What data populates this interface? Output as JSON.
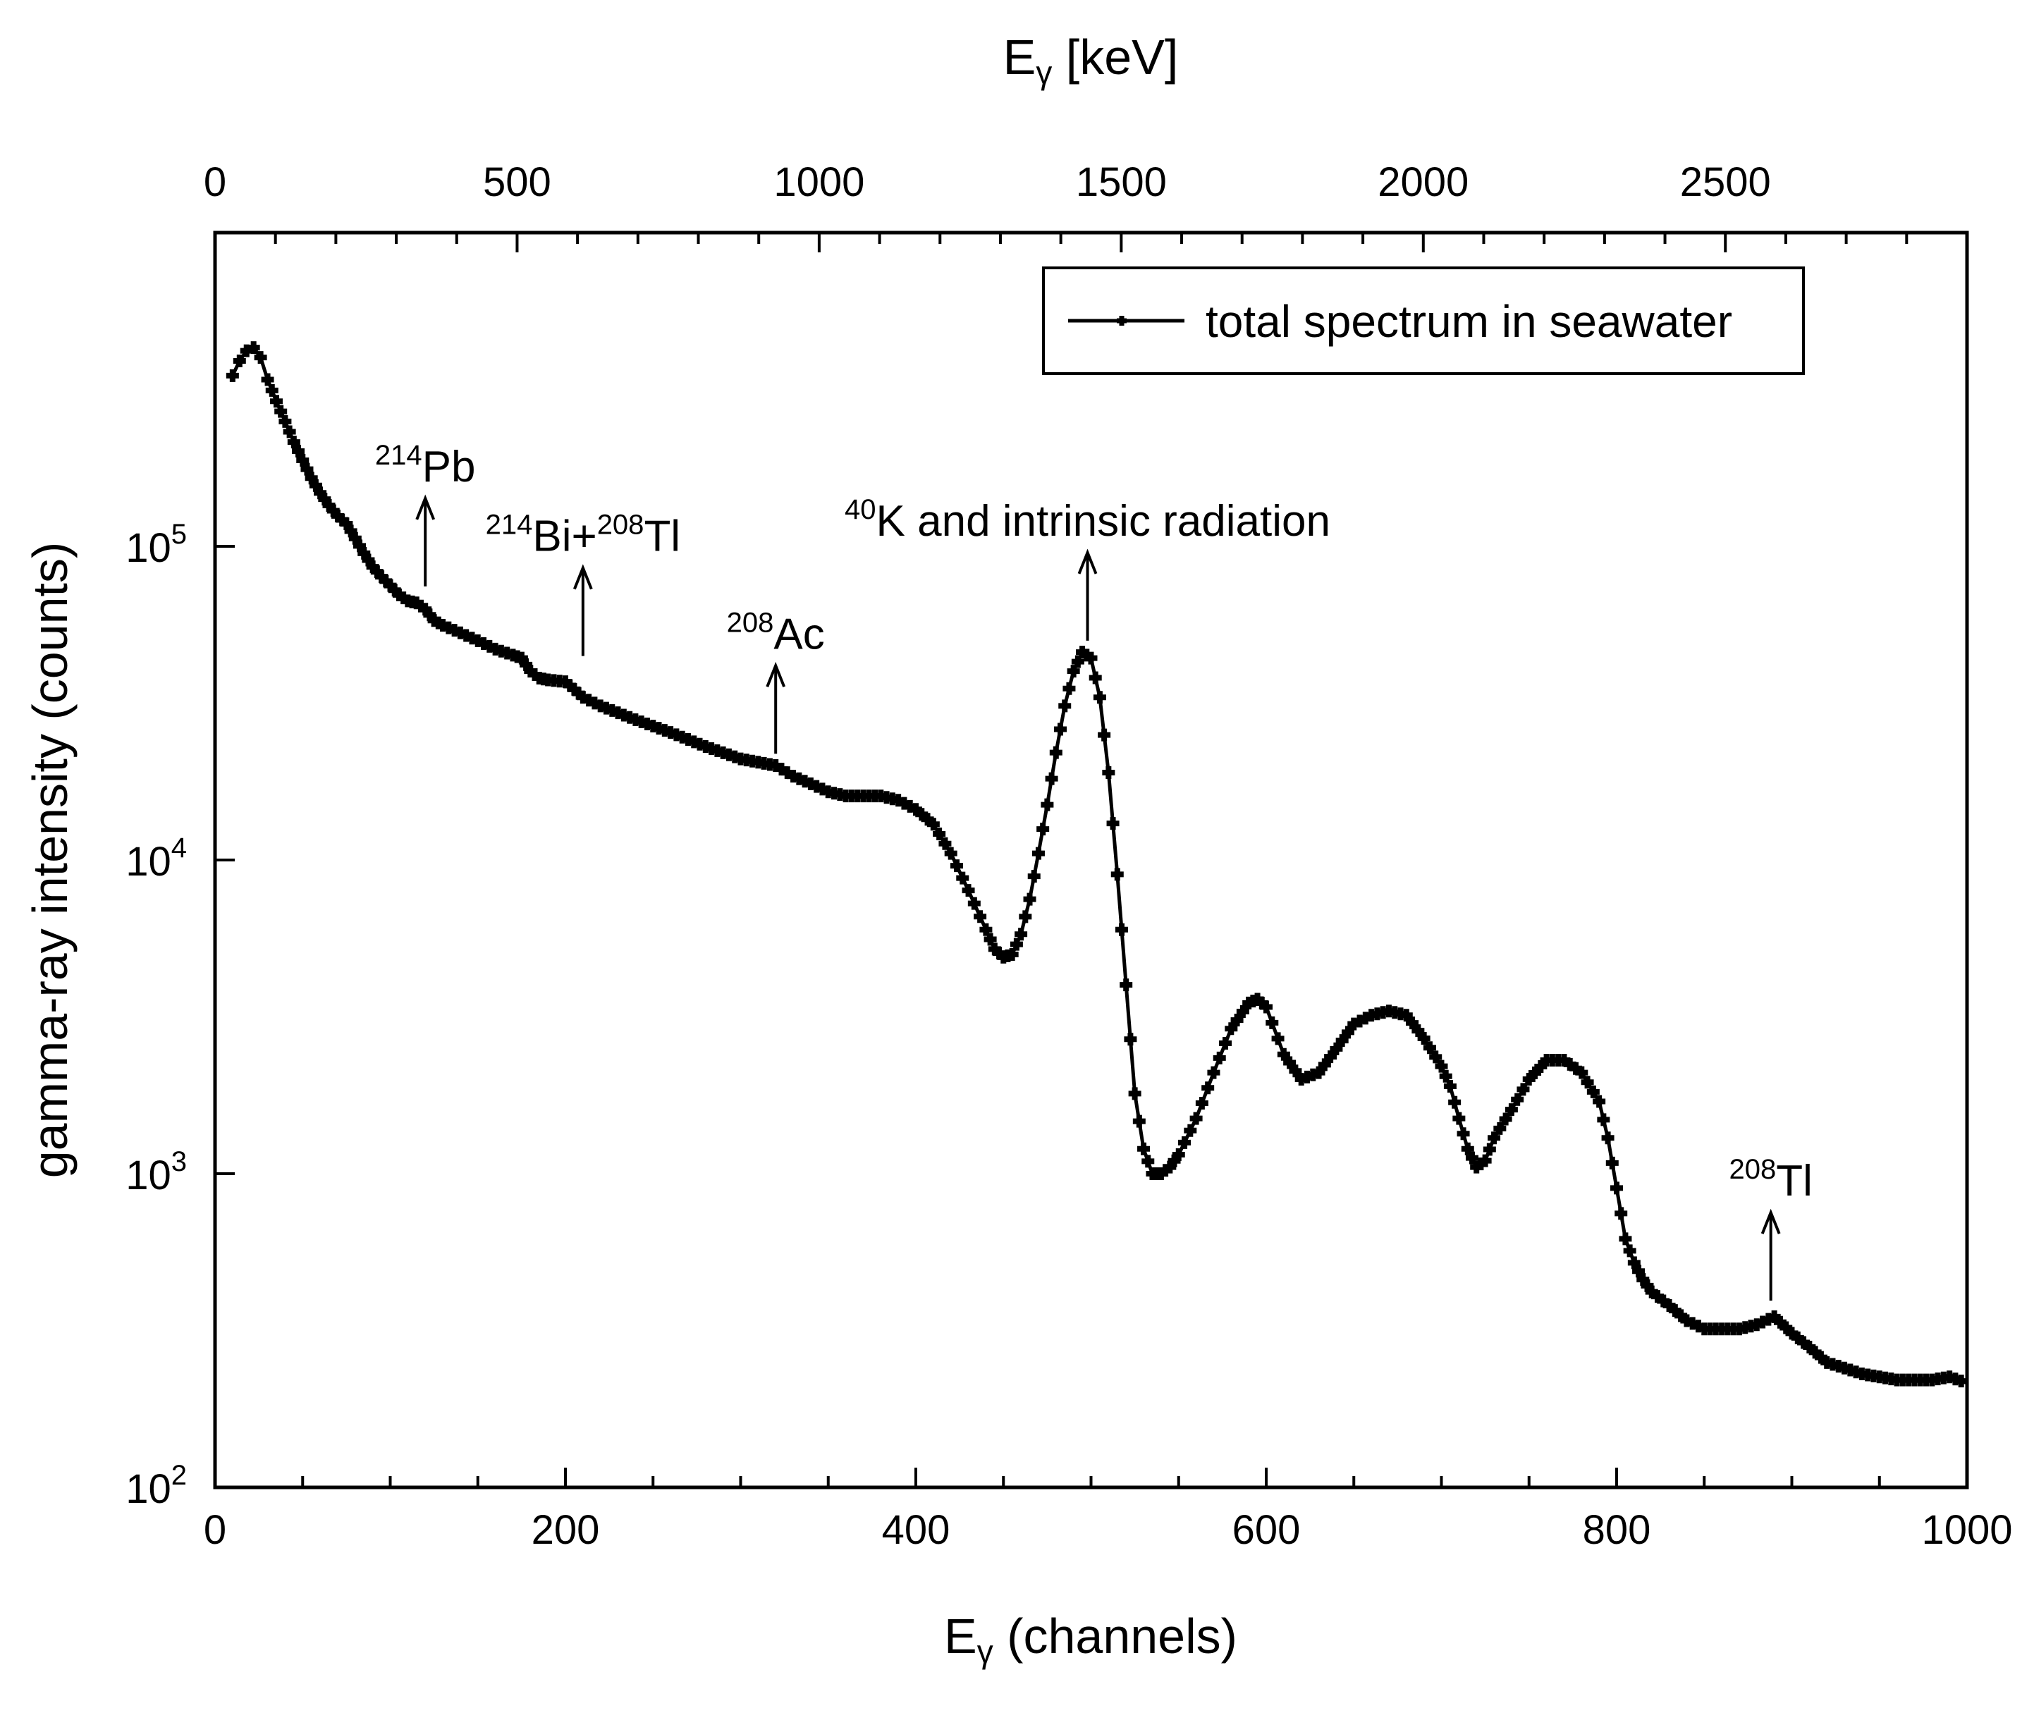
{
  "chart_data": {
    "type": "scatter",
    "title": "",
    "xlabel": "Eγ (channels)",
    "x2label": "Eγ [keV]",
    "ylabel": "gamma-ray intensity (counts)",
    "xlim": [
      0,
      1000
    ],
    "x2lim": [
      0,
      2900
    ],
    "ylim": [
      100,
      1000000
    ],
    "yscale": "log",
    "grid": false,
    "legend_position": "top-right",
    "x_ticks": [
      0,
      200,
      400,
      600,
      800,
      1000
    ],
    "x2_ticks": [
      0,
      500,
      1000,
      1500,
      2000,
      2500
    ],
    "y_ticks": [
      {
        "value": 100,
        "base": "10",
        "exp": "2"
      },
      {
        "value": 1000,
        "base": "10",
        "exp": "3"
      },
      {
        "value": 10000,
        "base": "10",
        "exp": "4"
      },
      {
        "value": 100000,
        "base": "10",
        "exp": "5"
      }
    ],
    "series": [
      {
        "name": "total spectrum in seawater",
        "marker": "plus",
        "color": "#000000",
        "x": [
          10,
          14,
          18,
          22,
          26,
          30,
          35,
          40,
          45,
          50,
          55,
          60,
          65,
          70,
          75,
          80,
          85,
          90,
          95,
          100,
          105,
          110,
          115,
          120,
          125,
          130,
          140,
          150,
          160,
          170,
          175,
          180,
          185,
          190,
          200,
          205,
          210,
          220,
          240,
          260,
          280,
          300,
          310,
          320,
          330,
          340,
          350,
          360,
          370,
          380,
          390,
          400,
          410,
          420,
          430,
          440,
          445,
          450,
          455,
          460,
          465,
          470,
          475,
          480,
          485,
          490,
          495,
          500,
          505,
          510,
          515,
          520,
          525,
          530,
          535,
          540,
          545,
          550,
          560,
          570,
          580,
          590,
          595,
          600,
          610,
          620,
          630,
          640,
          650,
          660,
          670,
          680,
          690,
          700,
          705,
          710,
          715,
          720,
          725,
          730,
          740,
          750,
          760,
          770,
          780,
          790,
          795,
          800,
          805,
          810,
          815,
          820,
          830,
          840,
          850,
          860,
          870,
          880,
          890,
          900,
          910,
          920,
          930,
          940,
          950,
          960,
          970,
          980,
          990,
          1000
        ],
        "y": [
          350000,
          390000,
          420000,
          430000,
          400000,
          340000,
          290000,
          250000,
          215000,
          188000,
          165000,
          148000,
          135000,
          125000,
          118000,
          106000,
          95000,
          86000,
          80000,
          75000,
          70000,
          67000,
          66000,
          63000,
          58000,
          56000,
          53000,
          50000,
          47000,
          45000,
          44000,
          40000,
          38000,
          37500,
          37000,
          35000,
          33000,
          31000,
          28000,
          25500,
          23000,
          21000,
          20500,
          20000,
          18500,
          17500,
          16500,
          16000,
          16000,
          16000,
          15500,
          14500,
          13000,
          10500,
          8000,
          6000,
          5200,
          4900,
          5000,
          5800,
          7500,
          10500,
          15000,
          22000,
          31000,
          40000,
          46000,
          44000,
          33000,
          19000,
          9000,
          4000,
          1800,
          1200,
          1000,
          1000,
          1050,
          1150,
          1500,
          2100,
          2900,
          3500,
          3600,
          3400,
          2400,
          2000,
          2100,
          2500,
          3000,
          3200,
          3300,
          3200,
          2700,
          2200,
          1900,
          1500,
          1200,
          1050,
          1100,
          1300,
          1600,
          2000,
          2300,
          2300,
          2100,
          1700,
          1300,
          900,
          620,
          520,
          460,
          420,
          380,
          340,
          320,
          320,
          320,
          330,
          350,
          310,
          280,
          250,
          240,
          230,
          225,
          220,
          220,
          220,
          225,
          215
        ]
      }
    ],
    "annotations": [
      {
        "sup": "214",
        "text": "Pb",
        "x": 120,
        "y": 70000
      },
      {
        "sup": "214",
        "text": "Bi+",
        "sup2": "208",
        "text2": "Tl",
        "x": 210,
        "y": 42000
      },
      {
        "sup": "208",
        "text": "Ac",
        "x": 320,
        "y": 20500
      },
      {
        "sup": "40",
        "text": "K and intrinsic radiation",
        "x": 498,
        "y": 47000
      },
      {
        "sup": "208",
        "text": "Tl",
        "x": 888,
        "y": 370
      }
    ]
  }
}
